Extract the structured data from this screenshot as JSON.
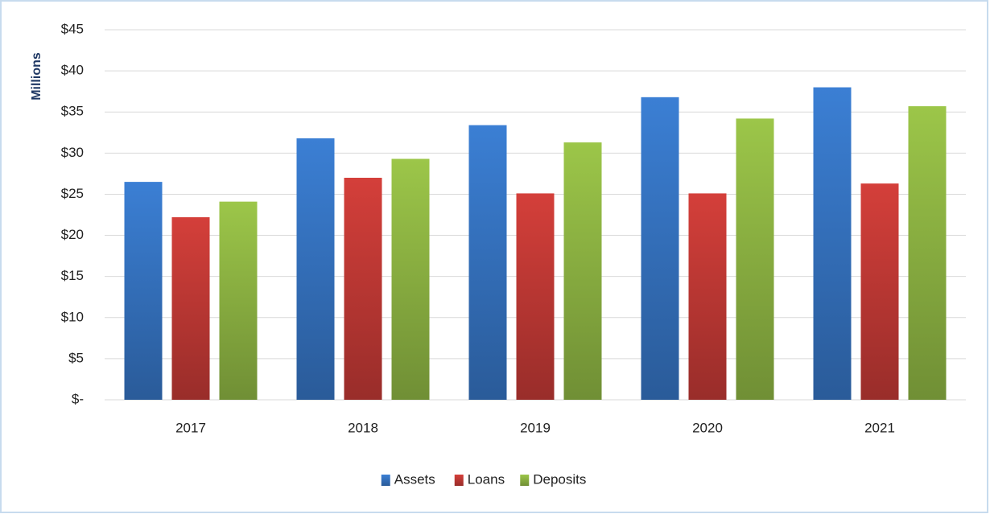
{
  "chart_data": {
    "type": "bar",
    "y_axis_label": "Millions",
    "categories": [
      "2017",
      "2018",
      "2019",
      "2020",
      "2021"
    ],
    "series": [
      {
        "name": "Assets",
        "color": "#3b7fd4",
        "values": [
          26.5,
          31.8,
          33.4,
          36.8,
          38.0
        ]
      },
      {
        "name": "Loans",
        "color": "#d43f3a",
        "values": [
          22.2,
          27.0,
          25.1,
          25.1,
          26.3
        ]
      },
      {
        "name": "Deposits",
        "color": "#9cc649",
        "values": [
          24.1,
          29.3,
          31.3,
          34.2,
          35.7
        ]
      }
    ],
    "ylim": [
      0,
      45
    ],
    "yticks": [
      {
        "value": 0,
        "label": "$-"
      },
      {
        "value": 5,
        "label": "$5"
      },
      {
        "value": 10,
        "label": "$10"
      },
      {
        "value": 15,
        "label": "$15"
      },
      {
        "value": 20,
        "label": "$20"
      },
      {
        "value": 25,
        "label": "$25"
      },
      {
        "value": 30,
        "label": "$30"
      },
      {
        "value": 35,
        "label": "$35"
      },
      {
        "value": 40,
        "label": "$40"
      },
      {
        "value": 45,
        "label": "$45"
      }
    ],
    "grid": true,
    "legend": "bottom"
  }
}
